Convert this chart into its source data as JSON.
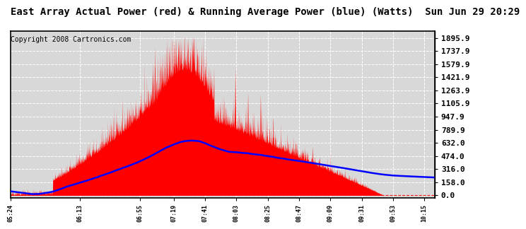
{
  "title": "East Array Actual Power (red) & Running Average Power (blue) (Watts)  Sun Jun 29 20:29",
  "copyright": "Copyright 2008 Cartronics.com",
  "yticks": [
    0.0,
    158.0,
    316.0,
    474.0,
    632.0,
    789.9,
    947.9,
    1105.9,
    1263.9,
    1421.9,
    1579.9,
    1737.9,
    1895.9
  ],
  "ylim": [
    -30,
    1980
  ],
  "background_color": "#ffffff",
  "plot_bg_color": "#d8d8d8",
  "grid_color": "#ffffff",
  "actual_color": "#ff0000",
  "avg_color": "#0000ff",
  "baseline_color": "#ff0000",
  "title_fontsize": 10,
  "copyright_fontsize": 7,
  "tick_fontsize": 8,
  "xtick_fontsize": 6
}
